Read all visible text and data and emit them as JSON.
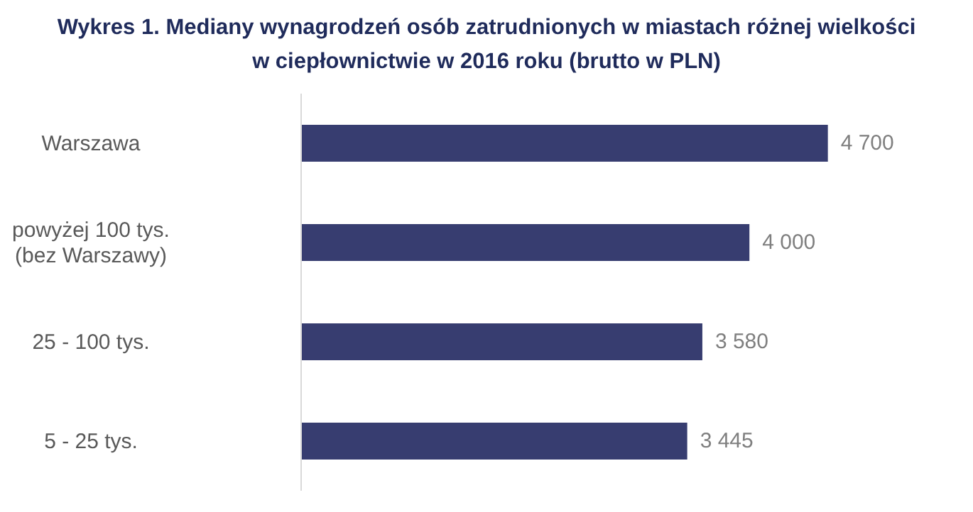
{
  "chart_data": {
    "type": "bar",
    "orientation": "horizontal",
    "title": "Wykres 1. Mediany wynagrodzeń osób zatrudnionych w miastach różnej wielkości\nw ciepłownictwie w 2016 roku (brutto w PLN)",
    "categories": [
      "Warszawa",
      "powyżej 100 tys.\n(bez Warszawy)",
      "25 - 100 tys.",
      "5 - 25 tys."
    ],
    "values": [
      4700,
      4000,
      3580,
      3445
    ],
    "color": "#373d70",
    "value_labels": [
      "4 700",
      "4 000",
      "3 580",
      "3 445"
    ]
  }
}
